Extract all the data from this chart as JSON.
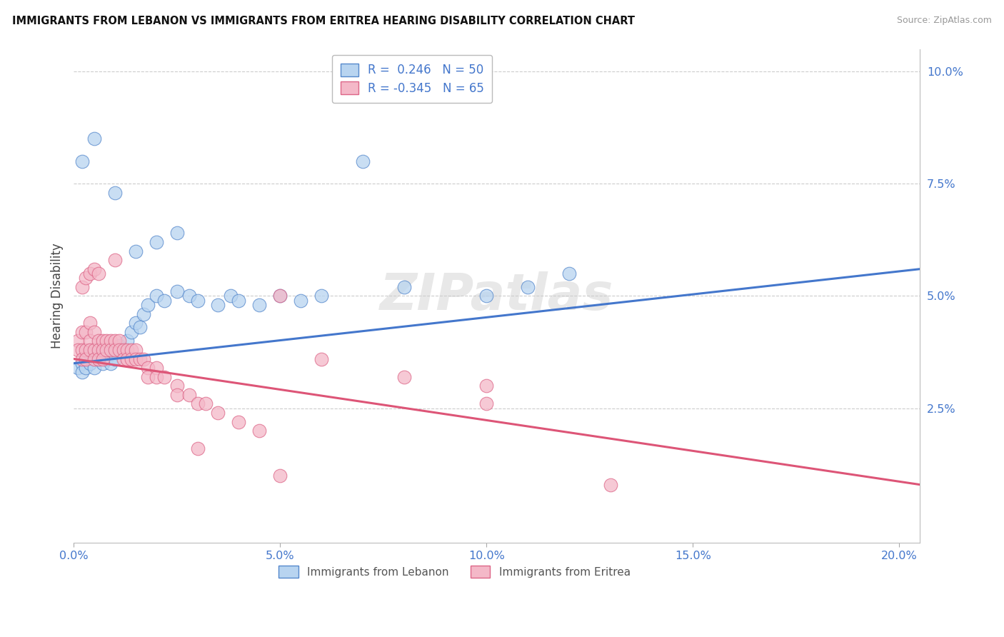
{
  "title": "IMMIGRANTS FROM LEBANON VS IMMIGRANTS FROM ERITREA HEARING DISABILITY CORRELATION CHART",
  "source": "Source: ZipAtlas.com",
  "ylabel": "Hearing Disability",
  "xlim": [
    0.0,
    0.205
  ],
  "ylim": [
    -0.005,
    0.105
  ],
  "yticks": [
    0.025,
    0.05,
    0.075,
    0.1
  ],
  "ytick_labels": [
    "2.5%",
    "5.0%",
    "7.5%",
    "10.0%"
  ],
  "xticks": [
    0.0,
    0.05,
    0.1,
    0.15,
    0.2
  ],
  "xtick_labels": [
    "0.0%",
    "5.0%",
    "10.0%",
    "15.0%",
    "20.0%"
  ],
  "legend_blue_r": "R =  0.246   N = 50",
  "legend_pink_r": "R = -0.345   N = 65",
  "legend_blue_series": "Immigrants from Lebanon",
  "legend_pink_series": "Immigrants from Eritrea",
  "blue_face": "#b8d4f0",
  "blue_edge": "#5588cc",
  "pink_face": "#f4b8c8",
  "pink_edge": "#dd6688",
  "blue_line": "#4477cc",
  "pink_line": "#dd5577",
  "bg": "#ffffff",
  "grid_color": "#cccccc",
  "watermark": "ZIPatlas",
  "blue_x": [
    0.001,
    0.002,
    0.002,
    0.003,
    0.003,
    0.004,
    0.004,
    0.005,
    0.005,
    0.006,
    0.006,
    0.007,
    0.007,
    0.008,
    0.008,
    0.009,
    0.009,
    0.01,
    0.01,
    0.011,
    0.012,
    0.013,
    0.014,
    0.015,
    0.016,
    0.017,
    0.018,
    0.02,
    0.022,
    0.025,
    0.028,
    0.03,
    0.035,
    0.038,
    0.04,
    0.045,
    0.05,
    0.055,
    0.06,
    0.08,
    0.1,
    0.11,
    0.015,
    0.02,
    0.025,
    0.002,
    0.005,
    0.01,
    0.07,
    0.12
  ],
  "blue_y": [
    0.034,
    0.035,
    0.033,
    0.036,
    0.034,
    0.037,
    0.035,
    0.036,
    0.034,
    0.038,
    0.036,
    0.037,
    0.035,
    0.038,
    0.036,
    0.037,
    0.035,
    0.038,
    0.036,
    0.039,
    0.038,
    0.04,
    0.042,
    0.044,
    0.043,
    0.046,
    0.048,
    0.05,
    0.049,
    0.051,
    0.05,
    0.049,
    0.048,
    0.05,
    0.049,
    0.048,
    0.05,
    0.049,
    0.05,
    0.052,
    0.05,
    0.052,
    0.06,
    0.062,
    0.064,
    0.08,
    0.085,
    0.073,
    0.08,
    0.055
  ],
  "pink_x": [
    0.001,
    0.001,
    0.002,
    0.002,
    0.002,
    0.003,
    0.003,
    0.003,
    0.004,
    0.004,
    0.004,
    0.005,
    0.005,
    0.005,
    0.006,
    0.006,
    0.006,
    0.007,
    0.007,
    0.007,
    0.008,
    0.008,
    0.009,
    0.009,
    0.01,
    0.01,
    0.011,
    0.011,
    0.012,
    0.012,
    0.013,
    0.013,
    0.014,
    0.014,
    0.015,
    0.015,
    0.016,
    0.017,
    0.018,
    0.018,
    0.02,
    0.02,
    0.022,
    0.025,
    0.025,
    0.028,
    0.03,
    0.032,
    0.035,
    0.04,
    0.045,
    0.05,
    0.06,
    0.08,
    0.1,
    0.13,
    0.002,
    0.003,
    0.004,
    0.005,
    0.006,
    0.01,
    0.03,
    0.1,
    0.05
  ],
  "pink_y": [
    0.04,
    0.038,
    0.042,
    0.038,
    0.036,
    0.042,
    0.038,
    0.036,
    0.044,
    0.04,
    0.038,
    0.042,
    0.038,
    0.036,
    0.04,
    0.038,
    0.036,
    0.04,
    0.038,
    0.036,
    0.04,
    0.038,
    0.04,
    0.038,
    0.04,
    0.038,
    0.04,
    0.038,
    0.038,
    0.036,
    0.038,
    0.036,
    0.038,
    0.036,
    0.038,
    0.036,
    0.036,
    0.036,
    0.034,
    0.032,
    0.034,
    0.032,
    0.032,
    0.03,
    0.028,
    0.028,
    0.026,
    0.026,
    0.024,
    0.022,
    0.02,
    0.05,
    0.036,
    0.032,
    0.026,
    0.008,
    0.052,
    0.054,
    0.055,
    0.056,
    0.055,
    0.058,
    0.016,
    0.03,
    0.01
  ]
}
